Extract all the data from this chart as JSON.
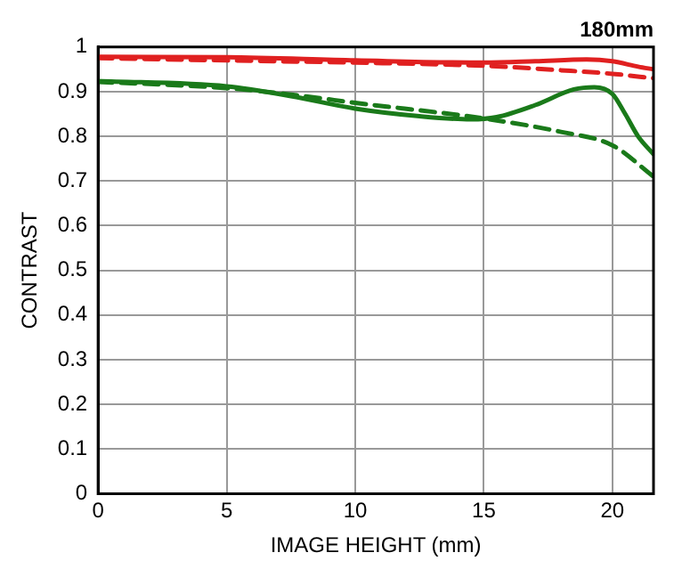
{
  "chart_data": {
    "type": "line",
    "title": "180mm",
    "xlabel": "IMAGE HEIGHT (mm)",
    "ylabel": "CONTRAST",
    "xlim": [
      0,
      21.6
    ],
    "xticks": [
      0,
      5,
      10,
      15,
      20
    ],
    "ylim": [
      0,
      1
    ],
    "yticks": [
      0,
      0.1,
      0.2,
      0.3,
      0.4,
      0.5,
      0.6,
      0.7,
      0.8,
      0.9,
      1
    ],
    "grid": true,
    "legend": false,
    "marker": "none",
    "series": [
      {
        "color": "#e02020",
        "line_style": "solid",
        "x": [
          0,
          5,
          10,
          15,
          17,
          19,
          20,
          21,
          21.6
        ],
        "values": [
          0.978,
          0.977,
          0.97,
          0.965,
          0.968,
          0.972,
          0.968,
          0.956,
          0.95
        ]
      },
      {
        "color": "#e02020",
        "line_style": "dashed",
        "x": [
          0,
          5,
          10,
          15,
          18,
          20,
          21.6
        ],
        "values": [
          0.975,
          0.97,
          0.965,
          0.958,
          0.948,
          0.94,
          0.93
        ]
      },
      {
        "color": "#1a7a1a",
        "line_style": "solid",
        "x": [
          0,
          5,
          7.5,
          10,
          12.5,
          14.5,
          15.5,
          17,
          18.5,
          19.3,
          20,
          20.5,
          21,
          21.6
        ],
        "values": [
          0.924,
          0.912,
          0.89,
          0.862,
          0.845,
          0.838,
          0.843,
          0.87,
          0.905,
          0.91,
          0.895,
          0.85,
          0.8,
          0.76
        ]
      },
      {
        "color": "#1a7a1a",
        "line_style": "dashed",
        "x": [
          0,
          5,
          8,
          10,
          15,
          18,
          20,
          21.6
        ],
        "values": [
          0.922,
          0.908,
          0.89,
          0.875,
          0.84,
          0.81,
          0.78,
          0.71
        ]
      }
    ]
  }
}
